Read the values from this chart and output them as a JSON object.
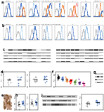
{
  "bg_color": "#FFFFFF",
  "flow_line_colors": {
    "gray": "#C0C0C0",
    "blue": "#4472C4",
    "orange": "#ED7D31",
    "light_blue": "#9DC3E6",
    "pink": "#FF9999"
  },
  "row1_panels": [
    {
      "peaks": [
        30,
        55
      ],
      "colors": [
        "#C0C0C0",
        "#4472C4"
      ],
      "title": "Ramos"
    },
    {
      "peaks": [
        25,
        50,
        75
      ],
      "colors": [
        "#C0C0C0",
        "#4472C4",
        "#ED7D31"
      ],
      "title": "C.I mutation"
    },
    {
      "peaks": [
        20,
        45,
        70
      ],
      "colors": [
        "#C0C0C0",
        "#9DC3E6",
        "#4472C4"
      ],
      "title": "D."
    },
    {
      "peaks": [
        30,
        60,
        85
      ],
      "colors": [
        "#C0C0C0",
        "#ED7D31",
        "#4472C4"
      ],
      "title": "Adaptive Liver Stage-1 specimen-F"
    }
  ],
  "row2_panels": [
    {
      "peaks": [
        35,
        65
      ],
      "colors": [
        "#C0C0C0",
        "#4472C4"
      ],
      "title": "Ramos"
    },
    {
      "peaks": [
        20,
        55
      ],
      "colors": [
        "#C0C0C0",
        "#9DC3E6"
      ],
      "title": "C.I mutation"
    },
    {
      "peaks": [
        30,
        60
      ],
      "colors": [
        "#C0C0C0",
        "#4472C4"
      ],
      "title": "D."
    },
    {
      "peaks": [
        25,
        50
      ],
      "colors": [
        "#C0C0C0",
        "#9DC3E6"
      ],
      "title": "Adaptive Liver Stage-1 specimen-F"
    }
  ],
  "wb_bg": "#D0D0D0",
  "wb_band_dark": "#303030",
  "wb_band_mid": "#808080",
  "dot_scatter_colors": [
    "#000000",
    "#4472C4",
    "#ED7D31",
    "#70AD47",
    "#FF0000",
    "#7030A0"
  ],
  "ihc_bg": "#C8A882",
  "ihc_spot_dark": "#6B3410",
  "ihc_spot_light": "#D2A870"
}
